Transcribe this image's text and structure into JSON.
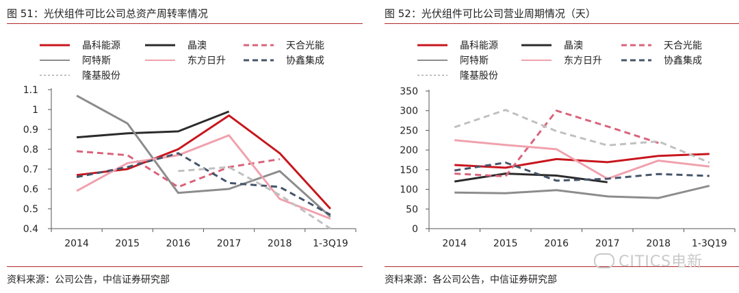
{
  "chart_data": [
    {
      "type": "line",
      "title": "图 51：光伏组件可比公司总资产周转率情况",
      "source": "资料来源：公司公告，中信证券研究部",
      "categories": [
        "2014",
        "2015",
        "2016",
        "2017",
        "2018",
        "1-3Q19"
      ],
      "ylim": [
        0.4,
        1.1
      ],
      "yticks": [
        "1.1",
        "1",
        "0.9",
        "0.8",
        "0.7",
        "0.6",
        "0.5",
        "0.4"
      ],
      "ytick_values": [
        1.1,
        1.0,
        0.9,
        0.8,
        0.7,
        0.6,
        0.5,
        0.4
      ],
      "xlabel": "",
      "ylabel": "",
      "series": [
        {
          "name": "晶科能源",
          "color": "#c8161d",
          "dash": "solid",
          "values": [
            0.67,
            0.7,
            0.8,
            0.97,
            0.78,
            0.5
          ]
        },
        {
          "name": "晶澳",
          "color": "#2b2b2b",
          "dash": "solid",
          "values": [
            0.86,
            0.88,
            0.89,
            0.99,
            null,
            null
          ]
        },
        {
          "name": "天合光能",
          "color": "#d9637a",
          "dash": "dash",
          "values": [
            0.79,
            0.77,
            0.61,
            0.71,
            0.75,
            null
          ]
        },
        {
          "name": "阿特斯",
          "color": "#8c8c8c",
          "dash": "solid",
          "values": [
            1.07,
            0.93,
            0.58,
            0.6,
            0.69,
            0.46
          ]
        },
        {
          "name": "东方日升",
          "color": "#f0a1ad",
          "dash": "solid",
          "values": [
            0.59,
            0.73,
            0.77,
            0.87,
            0.55,
            0.45
          ]
        },
        {
          "name": "协鑫集成",
          "color": "#44546a",
          "dash": "dash",
          "values": [
            0.66,
            0.71,
            0.78,
            0.63,
            0.61,
            0.47
          ]
        },
        {
          "name": "隆基股份",
          "color": "#c0c0c0",
          "dash": "dash",
          "values": [
            null,
            null,
            0.69,
            0.71,
            0.57,
            0.4
          ]
        }
      ]
    },
    {
      "type": "line",
      "title": "图 52：光伏组件可比公司营业周期情况（天）",
      "source": "资料来源：各公司公告，中信证券研究部",
      "categories": [
        "2014",
        "2015",
        "2016",
        "2017",
        "2018",
        "1-3Q19"
      ],
      "ylim": [
        0,
        350
      ],
      "yticks": [
        "350",
        "300",
        "250",
        "200",
        "150",
        "100",
        "50",
        "0"
      ],
      "ytick_values": [
        350,
        300,
        250,
        200,
        150,
        100,
        50,
        0
      ],
      "xlabel": "",
      "ylabel": "",
      "series": [
        {
          "name": "晶科能源",
          "color": "#c8161d",
          "dash": "solid",
          "values": [
            162,
            155,
            177,
            169,
            185,
            190
          ]
        },
        {
          "name": "晶澳",
          "color": "#2b2b2b",
          "dash": "solid",
          "values": [
            120,
            140,
            135,
            118,
            null,
            null
          ]
        },
        {
          "name": "天合光能",
          "color": "#d9637a",
          "dash": "dash",
          "values": [
            140,
            133,
            300,
            260,
            218,
            null
          ]
        },
        {
          "name": "阿特斯",
          "color": "#8c8c8c",
          "dash": "solid",
          "values": [
            92,
            90,
            98,
            82,
            78,
            109
          ]
        },
        {
          "name": "东方日升",
          "color": "#f0a1ad",
          "dash": "solid",
          "values": [
            225,
            213,
            202,
            127,
            173,
            158
          ]
        },
        {
          "name": "协鑫集成",
          "color": "#44546a",
          "dash": "dash",
          "values": [
            148,
            168,
            122,
            127,
            139,
            134
          ]
        },
        {
          "name": "隆基股份",
          "color": "#c0c0c0",
          "dash": "dash",
          "values": [
            258,
            302,
            248,
            212,
            222,
            168
          ]
        }
      ]
    }
  ],
  "watermark": "CITICS电新"
}
